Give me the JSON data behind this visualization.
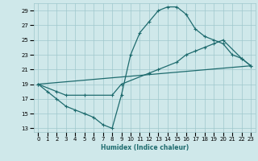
{
  "title": "",
  "xlabel": "Humidex (Indice chaleur)",
  "xlim": [
    -0.5,
    23.5
  ],
  "ylim": [
    12.5,
    30.0
  ],
  "xticks": [
    0,
    1,
    2,
    3,
    4,
    5,
    6,
    7,
    8,
    9,
    10,
    11,
    12,
    13,
    14,
    15,
    16,
    17,
    18,
    19,
    20,
    21,
    22,
    23
  ],
  "yticks": [
    13,
    15,
    17,
    19,
    21,
    23,
    25,
    27,
    29
  ],
  "background_color": "#cfe8ea",
  "grid_color": "#9fc8cc",
  "line_color": "#1e6b6e",
  "line1_x": [
    0,
    1,
    2,
    3,
    4,
    5,
    6,
    7,
    8,
    9,
    10,
    11,
    12,
    13,
    14,
    15,
    16,
    17,
    18,
    19,
    20,
    21,
    22,
    23
  ],
  "line1_y": [
    19.0,
    18.0,
    17.0,
    16.0,
    15.5,
    15.0,
    14.5,
    13.5,
    13.0,
    17.5,
    23.0,
    26.0,
    27.5,
    29.0,
    29.5,
    29.5,
    28.5,
    26.5,
    25.5,
    25.0,
    24.5,
    23.0,
    22.5,
    21.5
  ],
  "line2_x": [
    0,
    2,
    3,
    5,
    8,
    9,
    12,
    13,
    15,
    16,
    17,
    18,
    19,
    20,
    22,
    23
  ],
  "line2_y": [
    19.0,
    18.0,
    17.5,
    17.5,
    17.5,
    19.0,
    20.5,
    21.0,
    22.0,
    23.0,
    23.5,
    24.0,
    24.5,
    25.0,
    22.5,
    21.5
  ],
  "line3_x": [
    0,
    23
  ],
  "line3_y": [
    19.0,
    21.5
  ]
}
